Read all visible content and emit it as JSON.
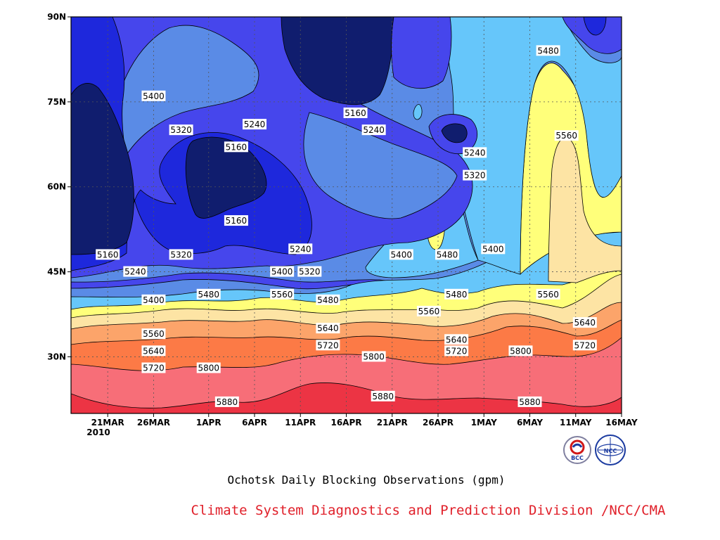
{
  "chart_data": {
    "type": "contour",
    "title": "Ochotsk Daily Blocking Observations (gpm)",
    "credit": "Climate System Diagnostics and Prediction Division /NCC/CMA",
    "x": {
      "range": [
        "2010-03-17",
        "2010-05-16"
      ],
      "ticks": [
        "21MAR",
        "26MAR",
        "1APR",
        "6APR",
        "11APR",
        "16APR",
        "21APR",
        "26APR",
        "1MAY",
        "6MAY",
        "11MAY",
        "16MAY"
      ],
      "tick_dates": [
        "2010-03-21",
        "2010-03-26",
        "2010-04-01",
        "2010-04-06",
        "2010-04-11",
        "2010-04-16",
        "2010-04-21",
        "2010-04-26",
        "2010-05-01",
        "2010-05-06",
        "2010-05-11",
        "2010-05-16"
      ],
      "year_label": "2010"
    },
    "y": {
      "range": [
        20,
        90
      ],
      "ticks": [
        "30N",
        "45N",
        "60N",
        "75N",
        "90N"
      ],
      "tick_values": [
        30,
        45,
        60,
        75,
        90
      ]
    },
    "grid": true,
    "contour_levels": [
      5160,
      5240,
      5320,
      5400,
      5480,
      5560,
      5640,
      5720,
      5800,
      5880
    ],
    "fill_colors": [
      "#101d6e",
      "#1e28dc",
      "#4646ec",
      "#5a8be6",
      "#66c6fa",
      "#ffff7a",
      "#fde4a4",
      "#fca46a",
      "#fc7a46",
      "#f76e78",
      "#ec3444"
    ],
    "contour_labels": [
      {
        "text": "5400",
        "date": "2010-03-26",
        "lat": 76
      },
      {
        "text": "5320",
        "date": "2010-03-29",
        "lat": 70
      },
      {
        "text": "5240",
        "date": "2010-04-06",
        "lat": 71
      },
      {
        "text": "5160",
        "date": "2010-04-04",
        "lat": 67
      },
      {
        "text": "5160",
        "date": "2010-04-04",
        "lat": 54
      },
      {
        "text": "5160",
        "date": "2010-03-21",
        "lat": 48
      },
      {
        "text": "5240",
        "date": "2010-03-24",
        "lat": 45
      },
      {
        "text": "5320",
        "date": "2010-03-29",
        "lat": 48
      },
      {
        "text": "5240",
        "date": "2010-04-11",
        "lat": 49
      },
      {
        "text": "5160",
        "date": "2010-04-17",
        "lat": 73
      },
      {
        "text": "5240",
        "date": "2010-04-19",
        "lat": 70
      },
      {
        "text": "5240",
        "date": "2010-04-30",
        "lat": 66
      },
      {
        "text": "5320",
        "date": "2010-04-30",
        "lat": 62
      },
      {
        "text": "5400",
        "date": "2010-04-22",
        "lat": 48
      },
      {
        "text": "5480",
        "date": "2010-04-27",
        "lat": 48
      },
      {
        "text": "5400",
        "date": "2010-05-02",
        "lat": 49
      },
      {
        "text": "5480",
        "date": "2010-05-08",
        "lat": 84
      },
      {
        "text": "5560",
        "date": "2010-05-10",
        "lat": 69
      },
      {
        "text": "5400",
        "date": "2010-04-09",
        "lat": 45
      },
      {
        "text": "5320",
        "date": "2010-04-12",
        "lat": 45
      },
      {
        "text": "5400",
        "date": "2010-03-26",
        "lat": 40
      },
      {
        "text": "5480",
        "date": "2010-04-01",
        "lat": 41
      },
      {
        "text": "5560",
        "date": "2010-04-09",
        "lat": 41
      },
      {
        "text": "5480",
        "date": "2010-04-14",
        "lat": 40
      },
      {
        "text": "5480",
        "date": "2010-04-28",
        "lat": 41
      },
      {
        "text": "5560",
        "date": "2010-04-25",
        "lat": 38
      },
      {
        "text": "5560",
        "date": "2010-05-08",
        "lat": 41
      },
      {
        "text": "5560",
        "date": "2010-03-26",
        "lat": 34
      },
      {
        "text": "5640",
        "date": "2010-03-26",
        "lat": 31
      },
      {
        "text": "5720",
        "date": "2010-03-26",
        "lat": 28
      },
      {
        "text": "5640",
        "date": "2010-04-14",
        "lat": 35
      },
      {
        "text": "5720",
        "date": "2010-04-14",
        "lat": 32
      },
      {
        "text": "5640",
        "date": "2010-04-28",
        "lat": 33
      },
      {
        "text": "5720",
        "date": "2010-04-28",
        "lat": 31
      },
      {
        "text": "5640",
        "date": "2010-05-12",
        "lat": 36
      },
      {
        "text": "5720",
        "date": "2010-05-12",
        "lat": 32
      },
      {
        "text": "5800",
        "date": "2010-04-01",
        "lat": 28
      },
      {
        "text": "5800",
        "date": "2010-04-19",
        "lat": 30
      },
      {
        "text": "5800",
        "date": "2010-05-05",
        "lat": 31
      },
      {
        "text": "5880",
        "date": "2010-04-03",
        "lat": 22
      },
      {
        "text": "5880",
        "date": "2010-04-20",
        "lat": 23
      },
      {
        "text": "5880",
        "date": "2010-05-06",
        "lat": 22
      }
    ]
  },
  "logos": {
    "bcc_text": "BCC",
    "ncc_text": "NCC"
  }
}
